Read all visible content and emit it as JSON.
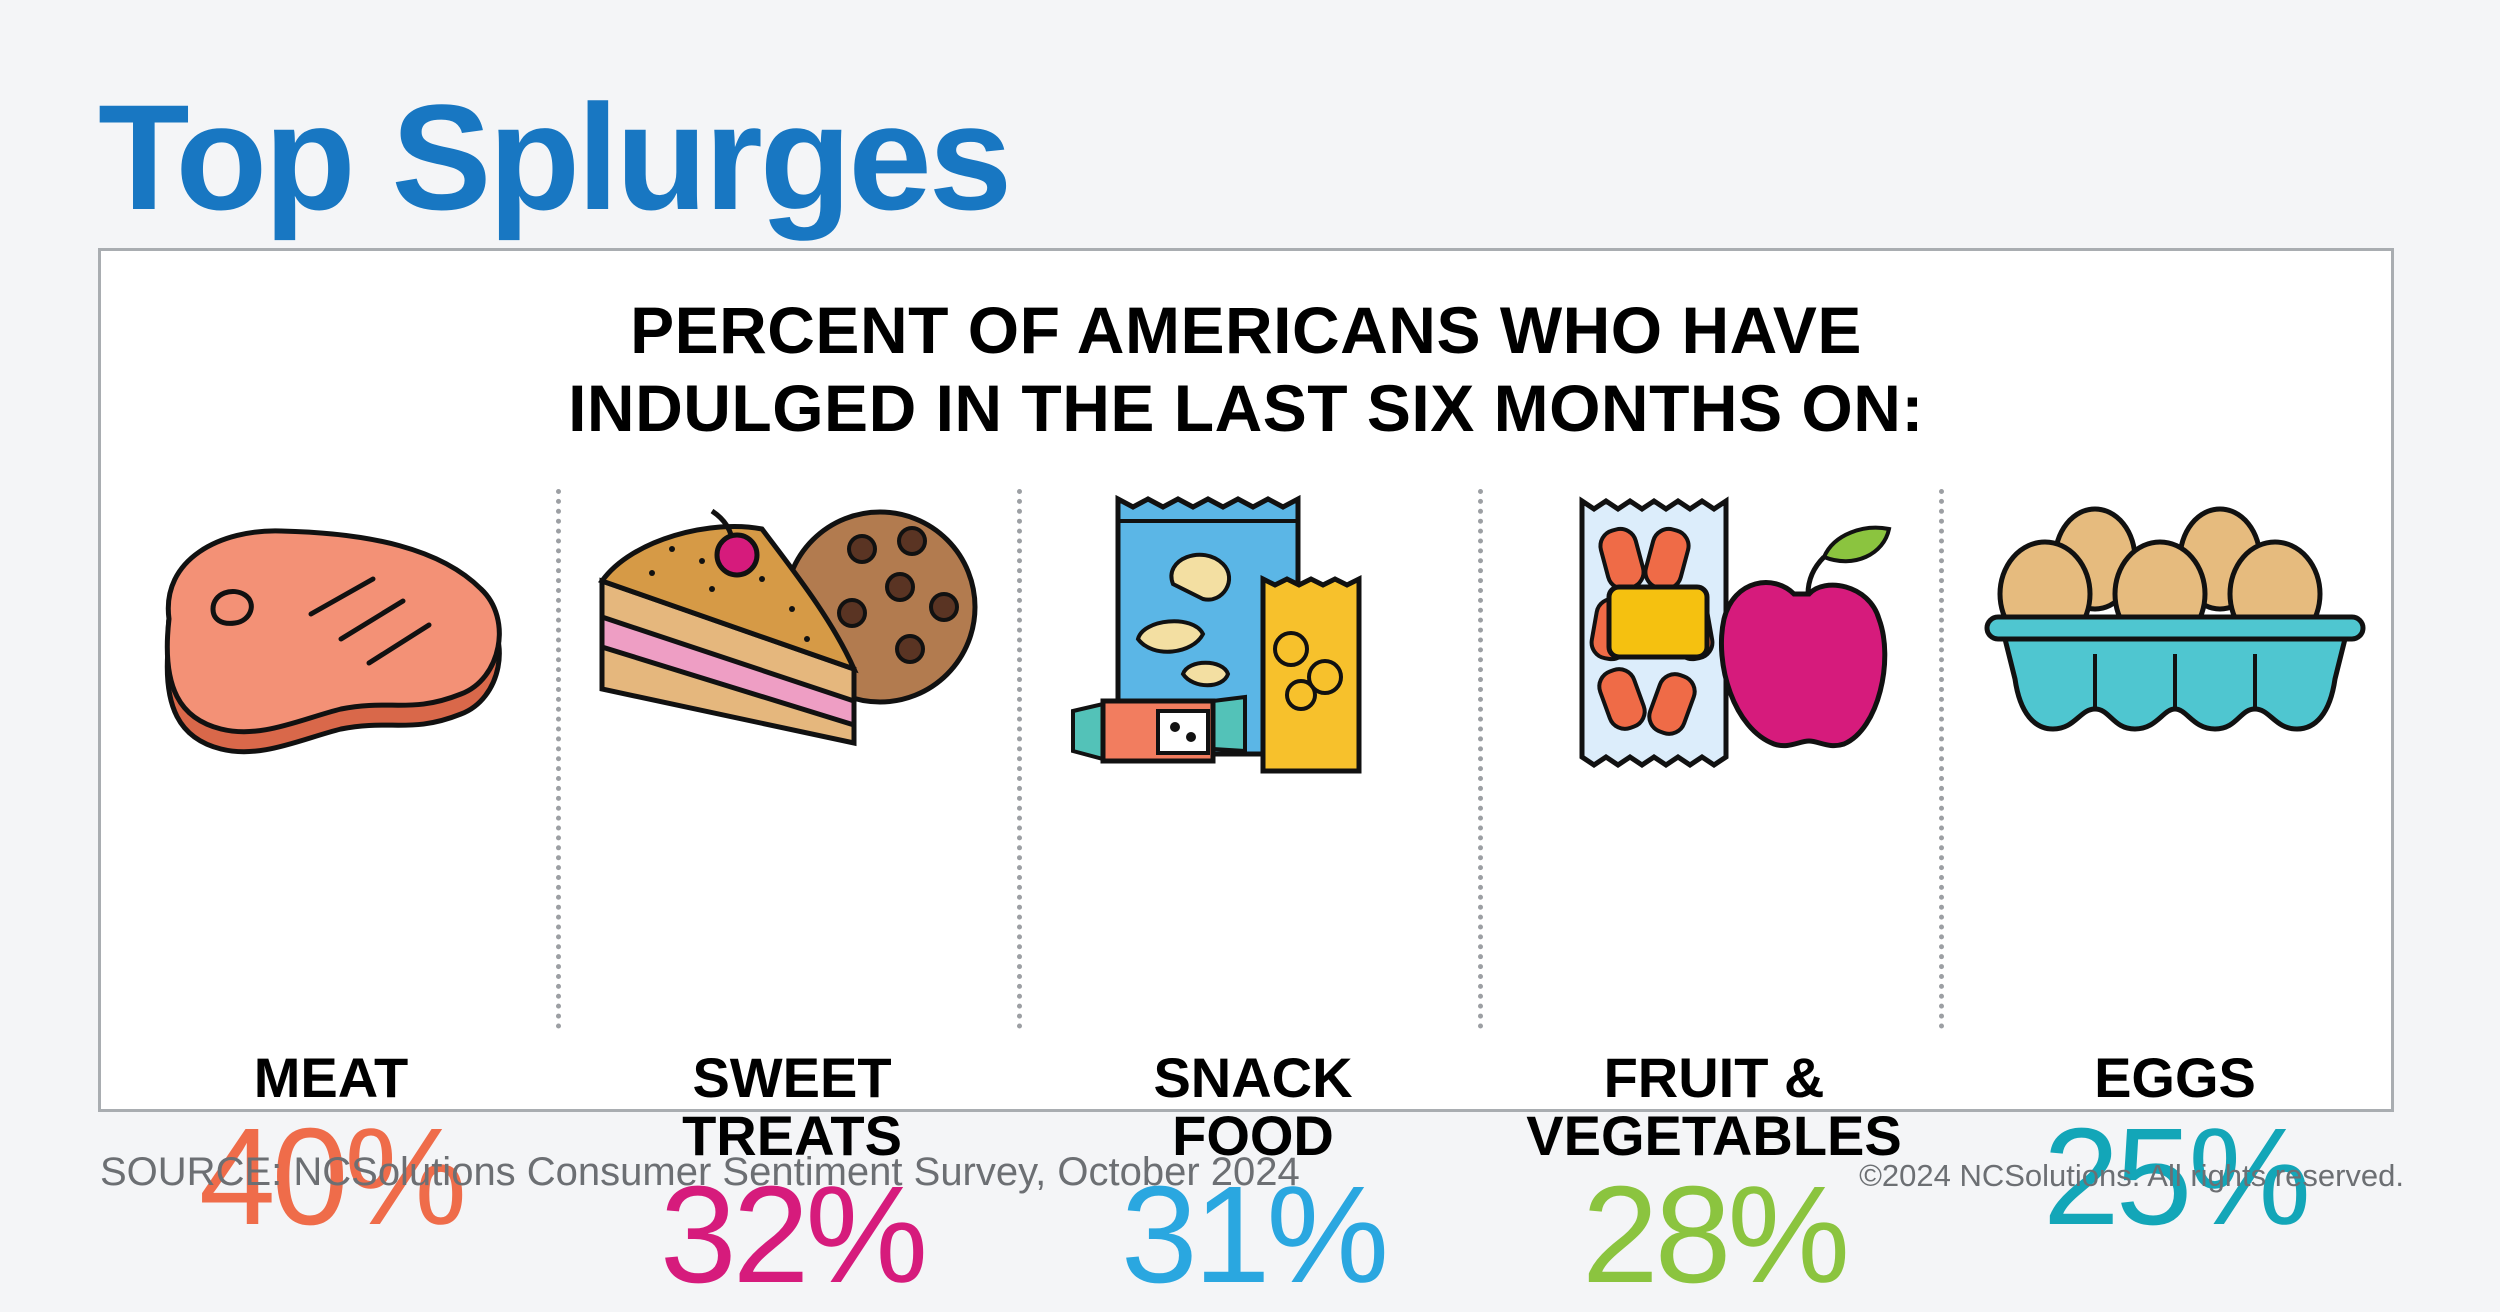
{
  "title": "Top Splurges",
  "subtitle": [
    "PERCENT OF AMERICANS WHO HAVE",
    "INDULGED IN THE LAST SIX MONTHS ON:"
  ],
  "chart_data": {
    "type": "bar",
    "title": "PERCENT OF AMERICANS WHO HAVE INDULGED IN THE LAST SIX MONTHS ON:",
    "categories": [
      "MEAT",
      "SWEET TREATS",
      "SNACK FOOD",
      "FRUIT & VEGETABLES",
      "EGGS"
    ],
    "values": [
      40,
      32,
      31,
      28,
      25
    ],
    "unit": "%",
    "items": [
      {
        "label_lines": [
          "MEAT"
        ],
        "value": 40,
        "value_text": "40%",
        "color": "#ef6c4a",
        "icon": "steak-icon"
      },
      {
        "label_lines": [
          "SWEET",
          "TREATS"
        ],
        "value": 32,
        "value_text": "32%",
        "color": "#d61b7c",
        "icon": "cake-and-cookie-icon"
      },
      {
        "label_lines": [
          "SNACK",
          "FOOD"
        ],
        "value": 31,
        "value_text": "31%",
        "color": "#2aa7e0",
        "icon": "snack-bags-icon"
      },
      {
        "label_lines": [
          "FRUIT &",
          "VEGETABLES"
        ],
        "value": 28,
        "value_text": "28%",
        "color": "#8bc43f",
        "icon": "carrots-and-apple-icon"
      },
      {
        "label_lines": [
          "EGGS"
        ],
        "value": 25,
        "value_text": "25%",
        "color": "#13a6b8",
        "icon": "egg-carton-icon"
      }
    ]
  },
  "footer": {
    "source": "SOURCE: NCSolutions Consumer Sentiment Survey, October 2024",
    "copyright": "©2024 NCSolutions. All rights reserved."
  }
}
